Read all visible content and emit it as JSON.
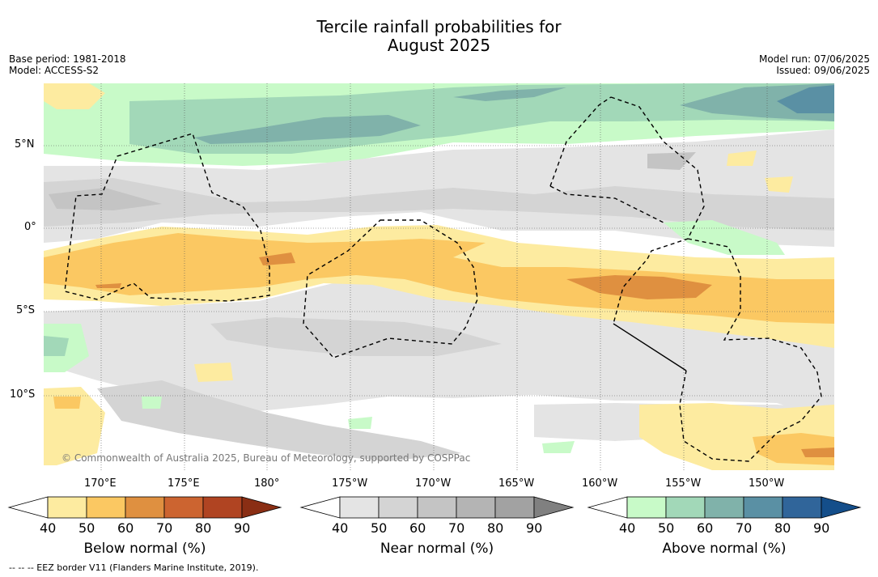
{
  "title_line1": "Tercile rainfall probabilities for",
  "title_line2": "August 2025",
  "base_period": "Base period: 1981-2018",
  "model": "Model: ACCESS-S2",
  "model_run": "Model run: 07/06/2025",
  "issued": "Issued: 09/06/2025",
  "credit": "© Commonwealth of Australia 2025, Bureau of Meteorology, supported by COSPPac",
  "lat_labels": [
    "5°N",
    "0°",
    "5°S",
    "10°S"
  ],
  "lon_labels": [
    "170°E",
    "175°E",
    "180°",
    "175°W",
    "170°W",
    "165°W",
    "160°W",
    "155°W",
    "150°W"
  ],
  "colorbars": [
    {
      "title": "Below normal (%)",
      "ticks": [
        "40",
        "50",
        "60",
        "70",
        "80",
        "90"
      ],
      "colors": [
        "#ffffff",
        "#fdeba0",
        "#fbc862",
        "#df9040",
        "#cc6430",
        "#b04422",
        "#8a2e14"
      ]
    },
    {
      "title": "Near normal (%)",
      "ticks": [
        "40",
        "50",
        "60",
        "70",
        "80",
        "90"
      ],
      "colors": [
        "#ffffff",
        "#e4e4e4",
        "#d4d4d4",
        "#c4c4c4",
        "#b4b4b4",
        "#a2a2a2",
        "#808080"
      ]
    },
    {
      "title": "Above normal (%)",
      "ticks": [
        "40",
        "50",
        "60",
        "70",
        "80",
        "90"
      ],
      "colors": [
        "#ffffff",
        "#c8fac8",
        "#a2d8b8",
        "#80b2aa",
        "#5a90a4",
        "#30659a",
        "#144e8a"
      ]
    }
  ],
  "footer": "--  --  -- EEZ border V11 (Flanders Marine Institute, 2019)."
}
